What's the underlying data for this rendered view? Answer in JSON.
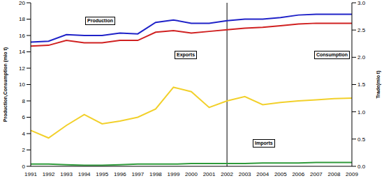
{
  "chart_data": {
    "type": "line",
    "categories": [
      "1991",
      "1992",
      "1993",
      "1994",
      "1995",
      "1996",
      "1997",
      "1998",
      "1999",
      "2000",
      "2001",
      "2002",
      "2003",
      "2004",
      "2005",
      "2006",
      "2007",
      "2008",
      "2009"
    ],
    "series": [
      {
        "name": "Production",
        "color": "#1f22c8",
        "values": [
          15.2,
          15.3,
          16.1,
          16.0,
          16.0,
          16.3,
          16.2,
          17.6,
          17.9,
          17.5,
          17.5,
          17.8,
          18.0,
          18.0,
          18.2,
          18.5,
          18.6,
          18.6,
          18.6
        ]
      },
      {
        "name": "Consumption",
        "color": "#d02020",
        "values": [
          14.7,
          14.8,
          15.4,
          15.1,
          15.1,
          15.4,
          15.4,
          16.4,
          16.6,
          16.3,
          16.5,
          16.7,
          16.9,
          17.0,
          17.2,
          17.4,
          17.5,
          17.5,
          17.5
        ]
      },
      {
        "name": "Exports",
        "color": "#f2d02a",
        "axis": "y2",
        "values": [
          0.66,
          0.52,
          0.75,
          0.95,
          0.78,
          0.83,
          0.9,
          1.05,
          1.45,
          1.37,
          1.08,
          1.2,
          1.28,
          1.13,
          1.17,
          1.2,
          1.22,
          1.24,
          1.25
        ]
      },
      {
        "name": "Imports",
        "color": "#2e9a3a",
        "axis": "y2",
        "values": [
          0.04,
          0.04,
          0.03,
          0.02,
          0.02,
          0.03,
          0.04,
          0.04,
          0.04,
          0.05,
          0.05,
          0.05,
          0.05,
          0.06,
          0.06,
          0.06,
          0.07,
          0.07,
          0.07
        ]
      }
    ],
    "y_label": "Production,Consumption (mio t)",
    "y2_label": "Trade(mio t)",
    "ylim": [
      0,
      20
    ],
    "yticks": [
      0,
      2,
      4,
      6,
      8,
      10,
      12,
      14,
      16,
      18,
      20
    ],
    "y2lim": [
      0,
      3
    ],
    "y2ticks": [
      {
        "value": 0,
        "label": "0.0"
      },
      0.5,
      {
        "value": 1,
        "label": "1.0"
      },
      1.5,
      {
        "value": 2,
        "label": "2.0"
      },
      2.5,
      {
        "value": 3,
        "label": "3.0"
      }
    ],
    "vertical_line": "2002",
    "grid": false
  }
}
